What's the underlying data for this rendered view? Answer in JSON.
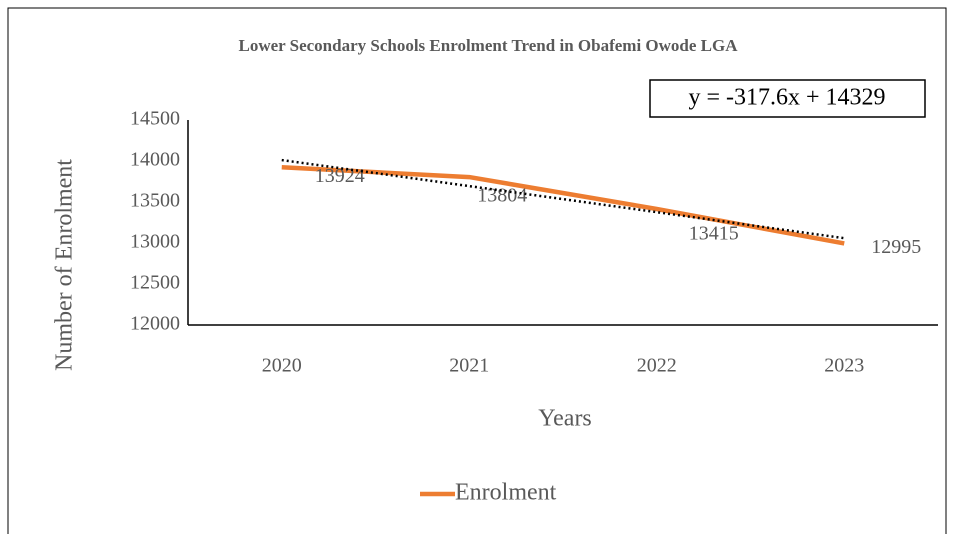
{
  "chart_data": {
    "type": "line",
    "title": "Lower Secondary Schools Enrolment Trend in Obafemi Owode LGA",
    "x_label": "Years",
    "y_label": "Number of Enrolment",
    "categories": [
      "2020",
      "2021",
      "2022",
      "2023"
    ],
    "series": [
      {
        "name": "Enrolment",
        "color": "#ed7d31",
        "values": [
          13924,
          13804,
          13415,
          12995
        ]
      }
    ],
    "ylim": [
      12000,
      14500
    ],
    "yticks": [
      12000,
      12500,
      13000,
      13500,
      14000,
      14500
    ],
    "grid": false,
    "legend": "bottom",
    "trendline": {
      "label": "y = -317.6x + 14329",
      "slope": -317.6,
      "intercept": 14329,
      "color": "#000000"
    }
  }
}
